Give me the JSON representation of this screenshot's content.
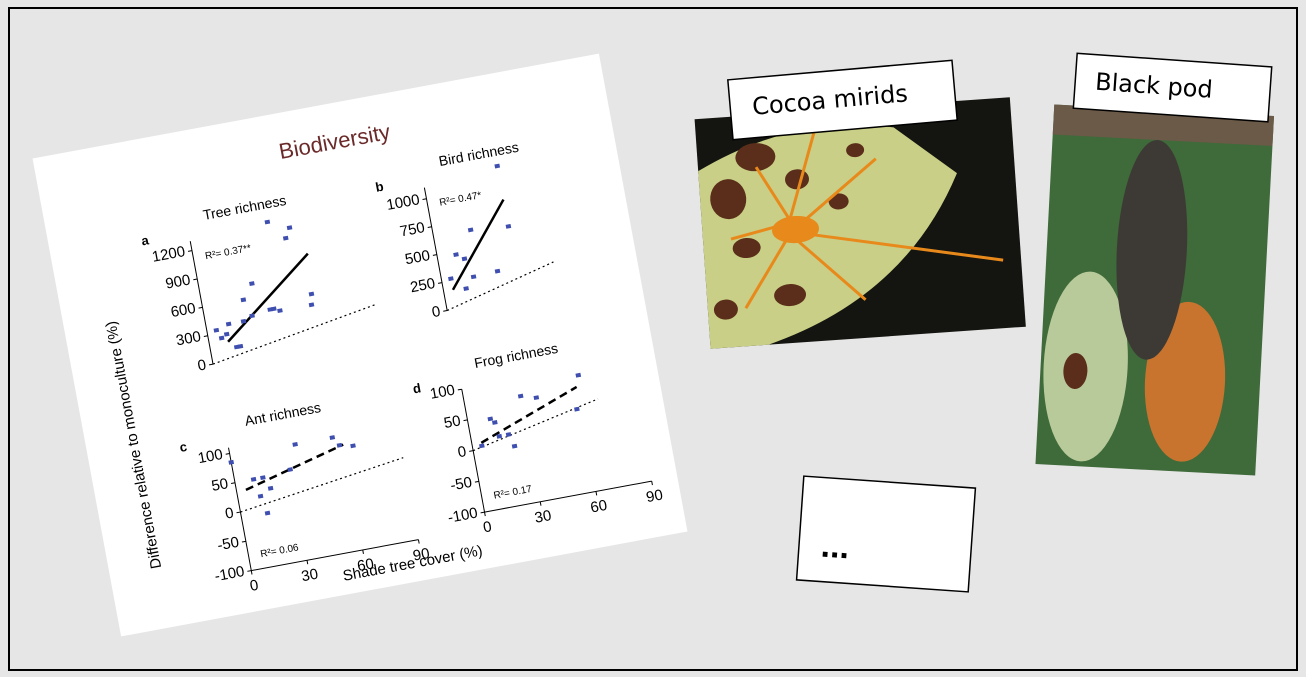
{
  "slide": {
    "photos": [
      {
        "label": "Cocoa mirids"
      },
      {
        "label": "Black pod"
      }
    ],
    "more": "..."
  },
  "figure": {
    "title": "Biodiversity",
    "y_label": "Difference relative to monoculture (%)",
    "x_label": "Shade tree cover (%)"
  },
  "chart_data": [
    {
      "type": "scatter",
      "panel": "a",
      "title": "Tree richness",
      "annotation": "R²= 0.37**",
      "color": "#3f4fb0",
      "x": [
        5,
        7,
        10,
        12,
        14,
        16,
        20,
        22,
        25,
        28,
        35,
        37,
        40,
        42,
        50,
        53,
        57,
        58
      ],
      "values": [
        340,
        250,
        280,
        380,
        130,
        130,
        380,
        600,
        420,
        750,
        450,
        450,
        420,
        1350,
        1150,
        1250,
        420,
        530
      ],
      "fit": {
        "x": [
          10,
          60
        ],
        "values": [
          200,
          950
        ],
        "style": "solid"
      },
      "reference": {
        "x": [
          0,
          90
        ],
        "values": [
          0,
          300
        ]
      },
      "xlim": [
        0,
        90
      ],
      "ylim": [
        0,
        1300
      ],
      "yticks": [
        0,
        300,
        600,
        900,
        1200
      ]
    },
    {
      "type": "scatter",
      "panel": "b",
      "title": "Bird richness",
      "annotation": "R²= 0.47*",
      "color": "#3f4fb0",
      "x": [
        5,
        10,
        12,
        14,
        17,
        20,
        30,
        40,
        40
      ],
      "values": [
        270,
        470,
        160,
        420,
        250,
        660,
        260,
        630,
        1170
      ],
      "fit": {
        "x": [
          5,
          40
        ],
        "values": [
          170,
          870
        ],
        "style": "solid"
      },
      "reference": {
        "x": [
          0,
          60
        ],
        "values": [
          0,
          250
        ]
      },
      "xlim": [
        0,
        90
      ],
      "ylim": [
        0,
        1100
      ],
      "yticks": [
        0,
        250,
        500,
        750,
        1000
      ]
    },
    {
      "type": "scatter",
      "panel": "c",
      "title": "Ant richness",
      "annotation": "R²= 0.06",
      "color": "#3f4fb0",
      "x": [
        0,
        10,
        12,
        14,
        15,
        18,
        30,
        35,
        55,
        58,
        65
      ],
      "values": [
        85,
        50,
        20,
        -10,
        50,
        30,
        55,
        95,
        95,
        80,
        75
      ],
      "fit": {
        "x": [
          5,
          60
        ],
        "values": [
          35,
          80
        ],
        "style": "dashed"
      },
      "reference": {
        "x": [
          0,
          90
        ],
        "values": [
          0,
          40
        ]
      },
      "xlim": [
        0,
        90
      ],
      "xticks": [
        0,
        30,
        60,
        90
      ],
      "ylim": [
        -100,
        110
      ],
      "yticks": [
        -100,
        -50,
        0,
        50,
        100
      ]
    },
    {
      "type": "scatter",
      "panel": "d",
      "title": "Frog richness",
      "annotation": "R²= 0.17",
      "color": "#3f4fb0",
      "x": [
        5,
        12,
        14,
        15,
        20,
        22,
        30,
        38,
        58,
        62
      ],
      "values": [
        5,
        45,
        38,
        15,
        15,
        -5,
        72,
        65,
        35,
        88
      ],
      "fit": {
        "x": [
          5,
          60
        ],
        "values": [
          10,
          70
        ],
        "style": "dashed"
      },
      "reference": {
        "x": [
          0,
          70
        ],
        "values": [
          0,
          45
        ]
      },
      "xlim": [
        0,
        90
      ],
      "xticks": [
        0,
        30,
        60,
        90
      ],
      "ylim": [
        -100,
        100
      ],
      "yticks": [
        -100,
        -50,
        0,
        50,
        100
      ]
    }
  ]
}
